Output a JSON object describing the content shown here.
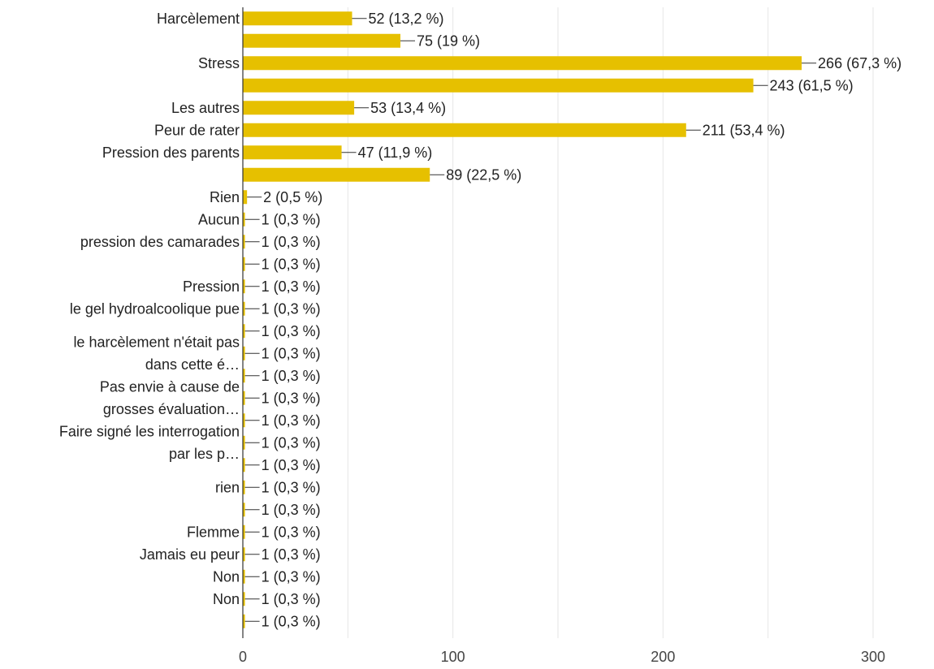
{
  "colors": {
    "bar": "#e6c000",
    "grid": "#e6e6e6",
    "axis": "#333333",
    "text": "#222222"
  },
  "chart_data": {
    "type": "bar",
    "orientation": "horizontal",
    "xlim": [
      0,
      300
    ],
    "xticks": [
      "0",
      "100",
      "200",
      "300"
    ],
    "grid": true,
    "rows": [
      {
        "label": "Harcèlement",
        "value": 52,
        "display": "52 (13,2 %)"
      },
      {
        "label": "",
        "value": 75,
        "display": "75 (19 %)"
      },
      {
        "label": "Stress",
        "value": 266,
        "display": "266 (67,3 %)"
      },
      {
        "label": "",
        "value": 243,
        "display": "243 (61,5 %)"
      },
      {
        "label": "Les autres",
        "value": 53,
        "display": "53 (13,4 %)"
      },
      {
        "label": "Peur de rater",
        "value": 211,
        "display": "211 (53,4 %)"
      },
      {
        "label": "Pression des parents",
        "value": 47,
        "display": "47 (11,9 %)"
      },
      {
        "label": "",
        "value": 89,
        "display": "89 (22,5 %)"
      },
      {
        "label": "Rien",
        "value": 2,
        "display": "2 (0,5 %)"
      },
      {
        "label": "Aucun",
        "value": 1,
        "display": "1 (0,3 %)"
      },
      {
        "label": "pression des camarades",
        "value": 1,
        "display": "1 (0,3 %)"
      },
      {
        "label": "",
        "value": 1,
        "display": "1 (0,3 %)"
      },
      {
        "label": "Pression",
        "value": 1,
        "display": "1 (0,3 %)"
      },
      {
        "label": "le gel hydroalcoolique pue",
        "value": 1,
        "display": "1 (0,3 %)"
      },
      {
        "label": "",
        "value": 1,
        "display": "1 (0,3 %)"
      },
      {
        "label": "",
        "value": 1,
        "display": "1 (0,3 %)"
      },
      {
        "label": "",
        "value": 1,
        "display": "1 (0,3 %)"
      },
      {
        "label": "",
        "value": 1,
        "display": "1 (0,3 %)"
      },
      {
        "label": "",
        "value": 1,
        "display": "1 (0,3 %)"
      },
      {
        "label": "",
        "value": 1,
        "display": "1 (0,3 %)"
      },
      {
        "label": "",
        "value": 1,
        "display": "1 (0,3 %)"
      },
      {
        "label": "rien",
        "value": 1,
        "display": "1 (0,3 %)"
      },
      {
        "label": "",
        "value": 1,
        "display": "1 (0,3 %)"
      },
      {
        "label": "Flemme",
        "value": 1,
        "display": "1 (0,3 %)"
      },
      {
        "label": "Jamais eu peur",
        "value": 1,
        "display": "1 (0,3 %)"
      },
      {
        "label": "Non",
        "value": 1,
        "display": "1 (0,3 %)"
      },
      {
        "label": "Non",
        "value": 1,
        "display": "1 (0,3 %)"
      },
      {
        "label": "",
        "value": 1,
        "display": "1 (0,3 %)"
      }
    ],
    "wrapped_labels": [
      {
        "text": "le harcèlement n'était pas",
        "row_center": 14.5
      },
      {
        "text": "dans cette é…",
        "row_center": 15.5
      },
      {
        "text": "Pas envie à cause de",
        "row_center": 16.5
      },
      {
        "text": "grosses évaluation…",
        "row_center": 17.5
      },
      {
        "text": "Faire signé les interrogation",
        "row_center": 18.5
      },
      {
        "text": "par les p…",
        "row_center": 19.5
      }
    ]
  }
}
